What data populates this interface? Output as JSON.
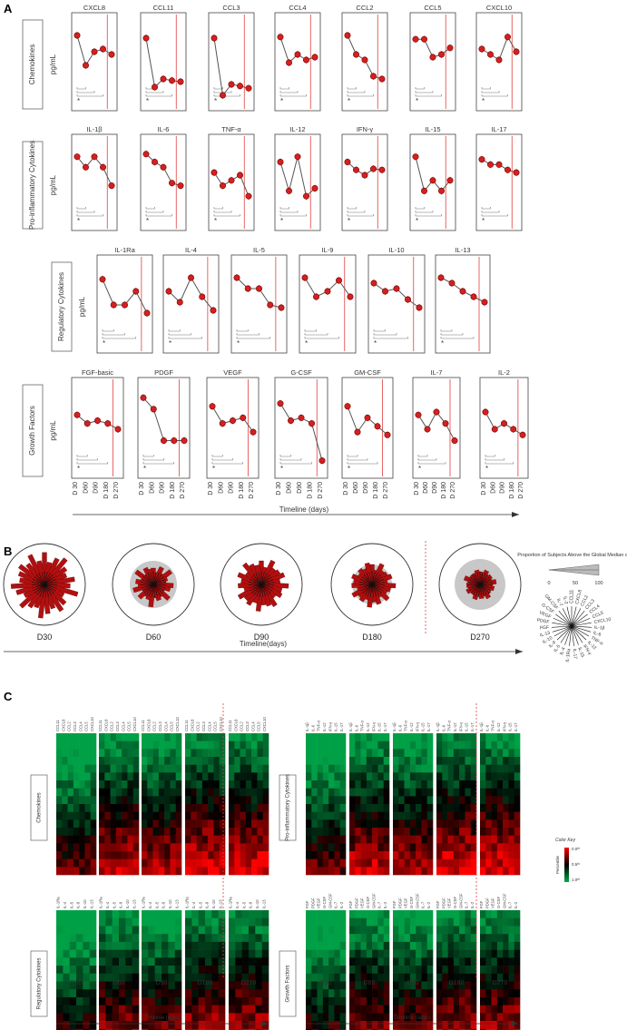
{
  "panels": {
    "a": "A",
    "b": "B",
    "c": "C"
  },
  "units": "pg/mL",
  "timeline_label": "Timeline (days)",
  "timeline_label_b": "Timeline(days)",
  "timeline_label_c": "Timeline  (days)",
  "chart_data": [
    {
      "type": "line",
      "x": [
        "D 30",
        "D60",
        "D90",
        "D 180",
        "D 270"
      ],
      "categories": [
        "D 30",
        "D60",
        "D90",
        "D 180",
        "D 270"
      ],
      "note_line_between": [
        "D 180",
        "D 270"
      ],
      "groups": [
        {
          "label": "Chemokines",
          "series": [
            {
              "name": "CXCL8",
              "values": [
                0.85,
                0.3,
                0.55,
                0.6,
                0.5
              ]
            },
            {
              "name": "CCL11",
              "values": [
                0.8,
                -0.1,
                0.05,
                0.02,
                0.0
              ]
            },
            {
              "name": "CCL3",
              "values": [
                0.8,
                -0.25,
                -0.05,
                -0.08,
                -0.12
              ]
            },
            {
              "name": "CCL4",
              "values": [
                0.82,
                0.35,
                0.5,
                0.4,
                0.45
              ]
            },
            {
              "name": "CCL2",
              "values": [
                0.85,
                0.5,
                0.4,
                0.1,
                0.05
              ]
            },
            {
              "name": "CCL5",
              "values": [
                0.78,
                0.78,
                0.45,
                0.5,
                0.62
              ]
            },
            {
              "name": "CXCL10",
              "values": [
                0.6,
                0.5,
                0.4,
                0.82,
                0.55
              ]
            }
          ]
        },
        {
          "label": "Pro-inflammatory Cytokines",
          "series": [
            {
              "name": "IL-1β",
              "values": [
                0.85,
                0.65,
                0.85,
                0.65,
                0.3
              ]
            },
            {
              "name": "IL-6",
              "values": [
                0.9,
                0.75,
                0.65,
                0.35,
                0.3
              ]
            },
            {
              "name": "TNF-α",
              "values": [
                0.55,
                0.3,
                0.4,
                0.5,
                0.1
              ]
            },
            {
              "name": "IL-12",
              "values": [
                0.75,
                0.2,
                0.85,
                0.1,
                0.25
              ]
            },
            {
              "name": "IFN-γ",
              "values": [
                0.75,
                0.6,
                0.5,
                0.62,
                0.6
              ]
            },
            {
              "name": "IL-15",
              "values": [
                0.85,
                0.2,
                0.4,
                0.2,
                0.4
              ]
            },
            {
              "name": "IL-17",
              "values": [
                0.8,
                0.7,
                0.7,
                0.6,
                0.55
              ]
            }
          ]
        },
        {
          "label": "Regulatory Cytokines",
          "series": [
            {
              "name": "IL-1Ra",
              "values": [
                0.82,
                0.35,
                0.35,
                0.6,
                0.2
              ]
            },
            {
              "name": "IL-4",
              "values": [
                0.6,
                0.4,
                0.85,
                0.5,
                0.25
              ]
            },
            {
              "name": "IL-5",
              "values": [
                0.85,
                0.65,
                0.65,
                0.35,
                0.3
              ]
            },
            {
              "name": "IL-9",
              "values": [
                0.85,
                0.5,
                0.6,
                0.8,
                0.5
              ]
            },
            {
              "name": "IL-10",
              "values": [
                0.75,
                0.6,
                0.65,
                0.45,
                0.3
              ]
            },
            {
              "name": "IL-13",
              "values": [
                0.85,
                0.75,
                0.6,
                0.5,
                0.4
              ]
            }
          ]
        },
        {
          "label": "Growth Factors",
          "series": [
            {
              "name": "FGF-basic",
              "values": [
                0.6,
                0.45,
                0.5,
                0.45,
                0.35
              ]
            },
            {
              "name": "PDGF",
              "values": [
                0.9,
                0.7,
                0.15,
                0.15,
                0.15
              ]
            },
            {
              "name": "VEGF",
              "values": [
                0.75,
                0.45,
                0.5,
                0.55,
                0.3
              ]
            },
            {
              "name": "G-CSF",
              "values": [
                0.8,
                0.5,
                0.55,
                0.45,
                -0.2
              ]
            },
            {
              "name": "GM-CSF",
              "values": [
                0.75,
                0.3,
                0.55,
                0.4,
                0.25
              ]
            },
            {
              "name": "IL-7",
              "values": [
                0.6,
                0.35,
                0.65,
                0.45,
                0.15
              ]
            },
            {
              "name": "IL-2",
              "values": [
                0.65,
                0.35,
                0.45,
                0.35,
                0.25
              ]
            }
          ]
        }
      ]
    },
    {
      "type": "radial_bar",
      "timepoints": [
        "D30",
        "D60",
        "D90",
        "D180",
        "D270"
      ],
      "legend_title": "Proportion of Subjects Above the Global Median cut off (%)",
      "legend_ticks": [
        "0",
        "50",
        "100"
      ],
      "axis_labels": [
        "CCL11",
        "CXCL8",
        "CCL2",
        "CCL3",
        "CCL4",
        "CCL5",
        "CXCL10",
        "IL-1β",
        "IL-6",
        "TNF-α",
        "IL-12",
        "IFN-γ",
        "IL-15",
        "IL-17",
        "IL-1Ra",
        "IL-4",
        "IL-5",
        "IL-9",
        "IL-10",
        "IL-13",
        "FGF",
        "PDGF",
        "VEGF",
        "G-CSF",
        "GM-CSF",
        "IL-7",
        "IL-2"
      ],
      "series": [
        {
          "name": "D30",
          "values": [
            88,
            62,
            79,
            91,
            73,
            65,
            84,
            71,
            95,
            60,
            77,
            86,
            70,
            81,
            93,
            67,
            74,
            89,
            63,
            80,
            92,
            69,
            76,
            85,
            72,
            90,
            66
          ]
        },
        {
          "name": "D60",
          "values": [
            45,
            30,
            52,
            38,
            60,
            41,
            35,
            55,
            48,
            33,
            58,
            40,
            46,
            37,
            62,
            44,
            39,
            53,
            31,
            57,
            42,
            49,
            36,
            59,
            34,
            50,
            43
          ]
        },
        {
          "name": "D90",
          "values": [
            65,
            48,
            72,
            55,
            60,
            68,
            52,
            75,
            58,
            63,
            50,
            70,
            62,
            57,
            74,
            53,
            66,
            59,
            71,
            49,
            64,
            56,
            69,
            51,
            73,
            61,
            54
          ]
        },
        {
          "name": "D180",
          "values": [
            55,
            40,
            62,
            47,
            50,
            58,
            43,
            65,
            52,
            46,
            60,
            41,
            57,
            49,
            63,
            44,
            54,
            48,
            61,
            42,
            56,
            51,
            59,
            45,
            53,
            47,
            60
          ]
        },
        {
          "name": "D270",
          "values": [
            35,
            25,
            42,
            30,
            38,
            28,
            45,
            33,
            40,
            27,
            36,
            44,
            31,
            39,
            26,
            43,
            34,
            29,
            41,
            32,
            37,
            24,
            46,
            30,
            35,
            28,
            40
          ]
        }
      ]
    },
    {
      "type": "heatmap",
      "timepoints": [
        "D30",
        "D60",
        "D90",
        "D180",
        "D270"
      ],
      "color_key": {
        "title": "Color Key",
        "axis": "Percentile",
        "labels": [
          "0.0ᵗʰ",
          "0.5ᵗʰ",
          "1.0ᵗʰ"
        ],
        "colors": [
          "#ff0000",
          "#000000",
          "#00aa44"
        ]
      },
      "groups": [
        {
          "label": "Chemokines",
          "columns": [
            "CCL11",
            "CXCL8",
            "CCL2",
            "CCL3",
            "CCL4",
            "CCL5",
            "CXCL10"
          ]
        },
        {
          "label": "Pro-inflammatory  Cytokines",
          "columns": [
            "IL-1β",
            "IL-6",
            "TNF-α",
            "IL-12",
            "IFN-γ",
            "IL-15",
            "IL-17"
          ]
        },
        {
          "label": "Regulatory  Cytokines",
          "columns": [
            "IL-1Ra",
            "IL-4",
            "IL-5",
            "IL-9",
            "IL-10",
            "IL-13"
          ]
        },
        {
          "label": "Growth Factors",
          "columns": [
            "FGF",
            "PDGF",
            "VEGF",
            "G-CSF",
            "GM-CSF",
            "IL-7",
            "IL-2"
          ]
        }
      ],
      "level_by_timepoint": [
        0.75,
        0.55,
        0.6,
        0.5,
        0.25
      ]
    }
  ]
}
